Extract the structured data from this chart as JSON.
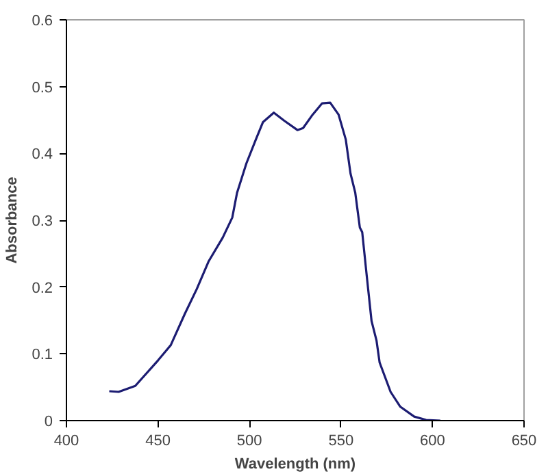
{
  "chart_data": {
    "type": "line",
    "xlabel": "Wavelength (nm)",
    "ylabel": "Absorbance",
    "xlim": [
      400,
      650
    ],
    "ylim": [
      0,
      0.6
    ],
    "xticks": [
      400,
      450,
      500,
      550,
      600,
      650
    ],
    "yticks": [
      0,
      0.1,
      0.2,
      0.3,
      0.4,
      0.5,
      0.6
    ],
    "grid": false,
    "marker": "none",
    "line_style": "solid",
    "series": [
      {
        "color": "#1c1c72",
        "x": [
          423.4,
          428.5,
          437.6,
          450,
          457,
          464.7,
          471.2,
          477.6,
          485.4,
          490.6,
          493.2,
          498.3,
          503.5,
          507.4,
          513.3,
          519,
          526.2,
          529.3,
          534.5,
          539.7,
          544.1,
          548.7,
          552.6,
          555.2,
          557.8,
          560.3,
          561.6,
          564.1,
          566.7,
          569.4,
          571.1,
          577.1,
          582.3,
          590,
          596.5,
          604.3
        ],
        "values": [
          0.044,
          0.043,
          0.052,
          0.09,
          0.113,
          0.16,
          0.197,
          0.238,
          0.274,
          0.304,
          0.341,
          0.385,
          0.421,
          0.447,
          0.461,
          0.449,
          0.435,
          0.438,
          0.458,
          0.475,
          0.476,
          0.458,
          0.421,
          0.37,
          0.341,
          0.289,
          0.282,
          0.216,
          0.149,
          0.12,
          0.087,
          0.043,
          0.021,
          0.006,
          0.001,
          0
        ]
      }
    ]
  }
}
